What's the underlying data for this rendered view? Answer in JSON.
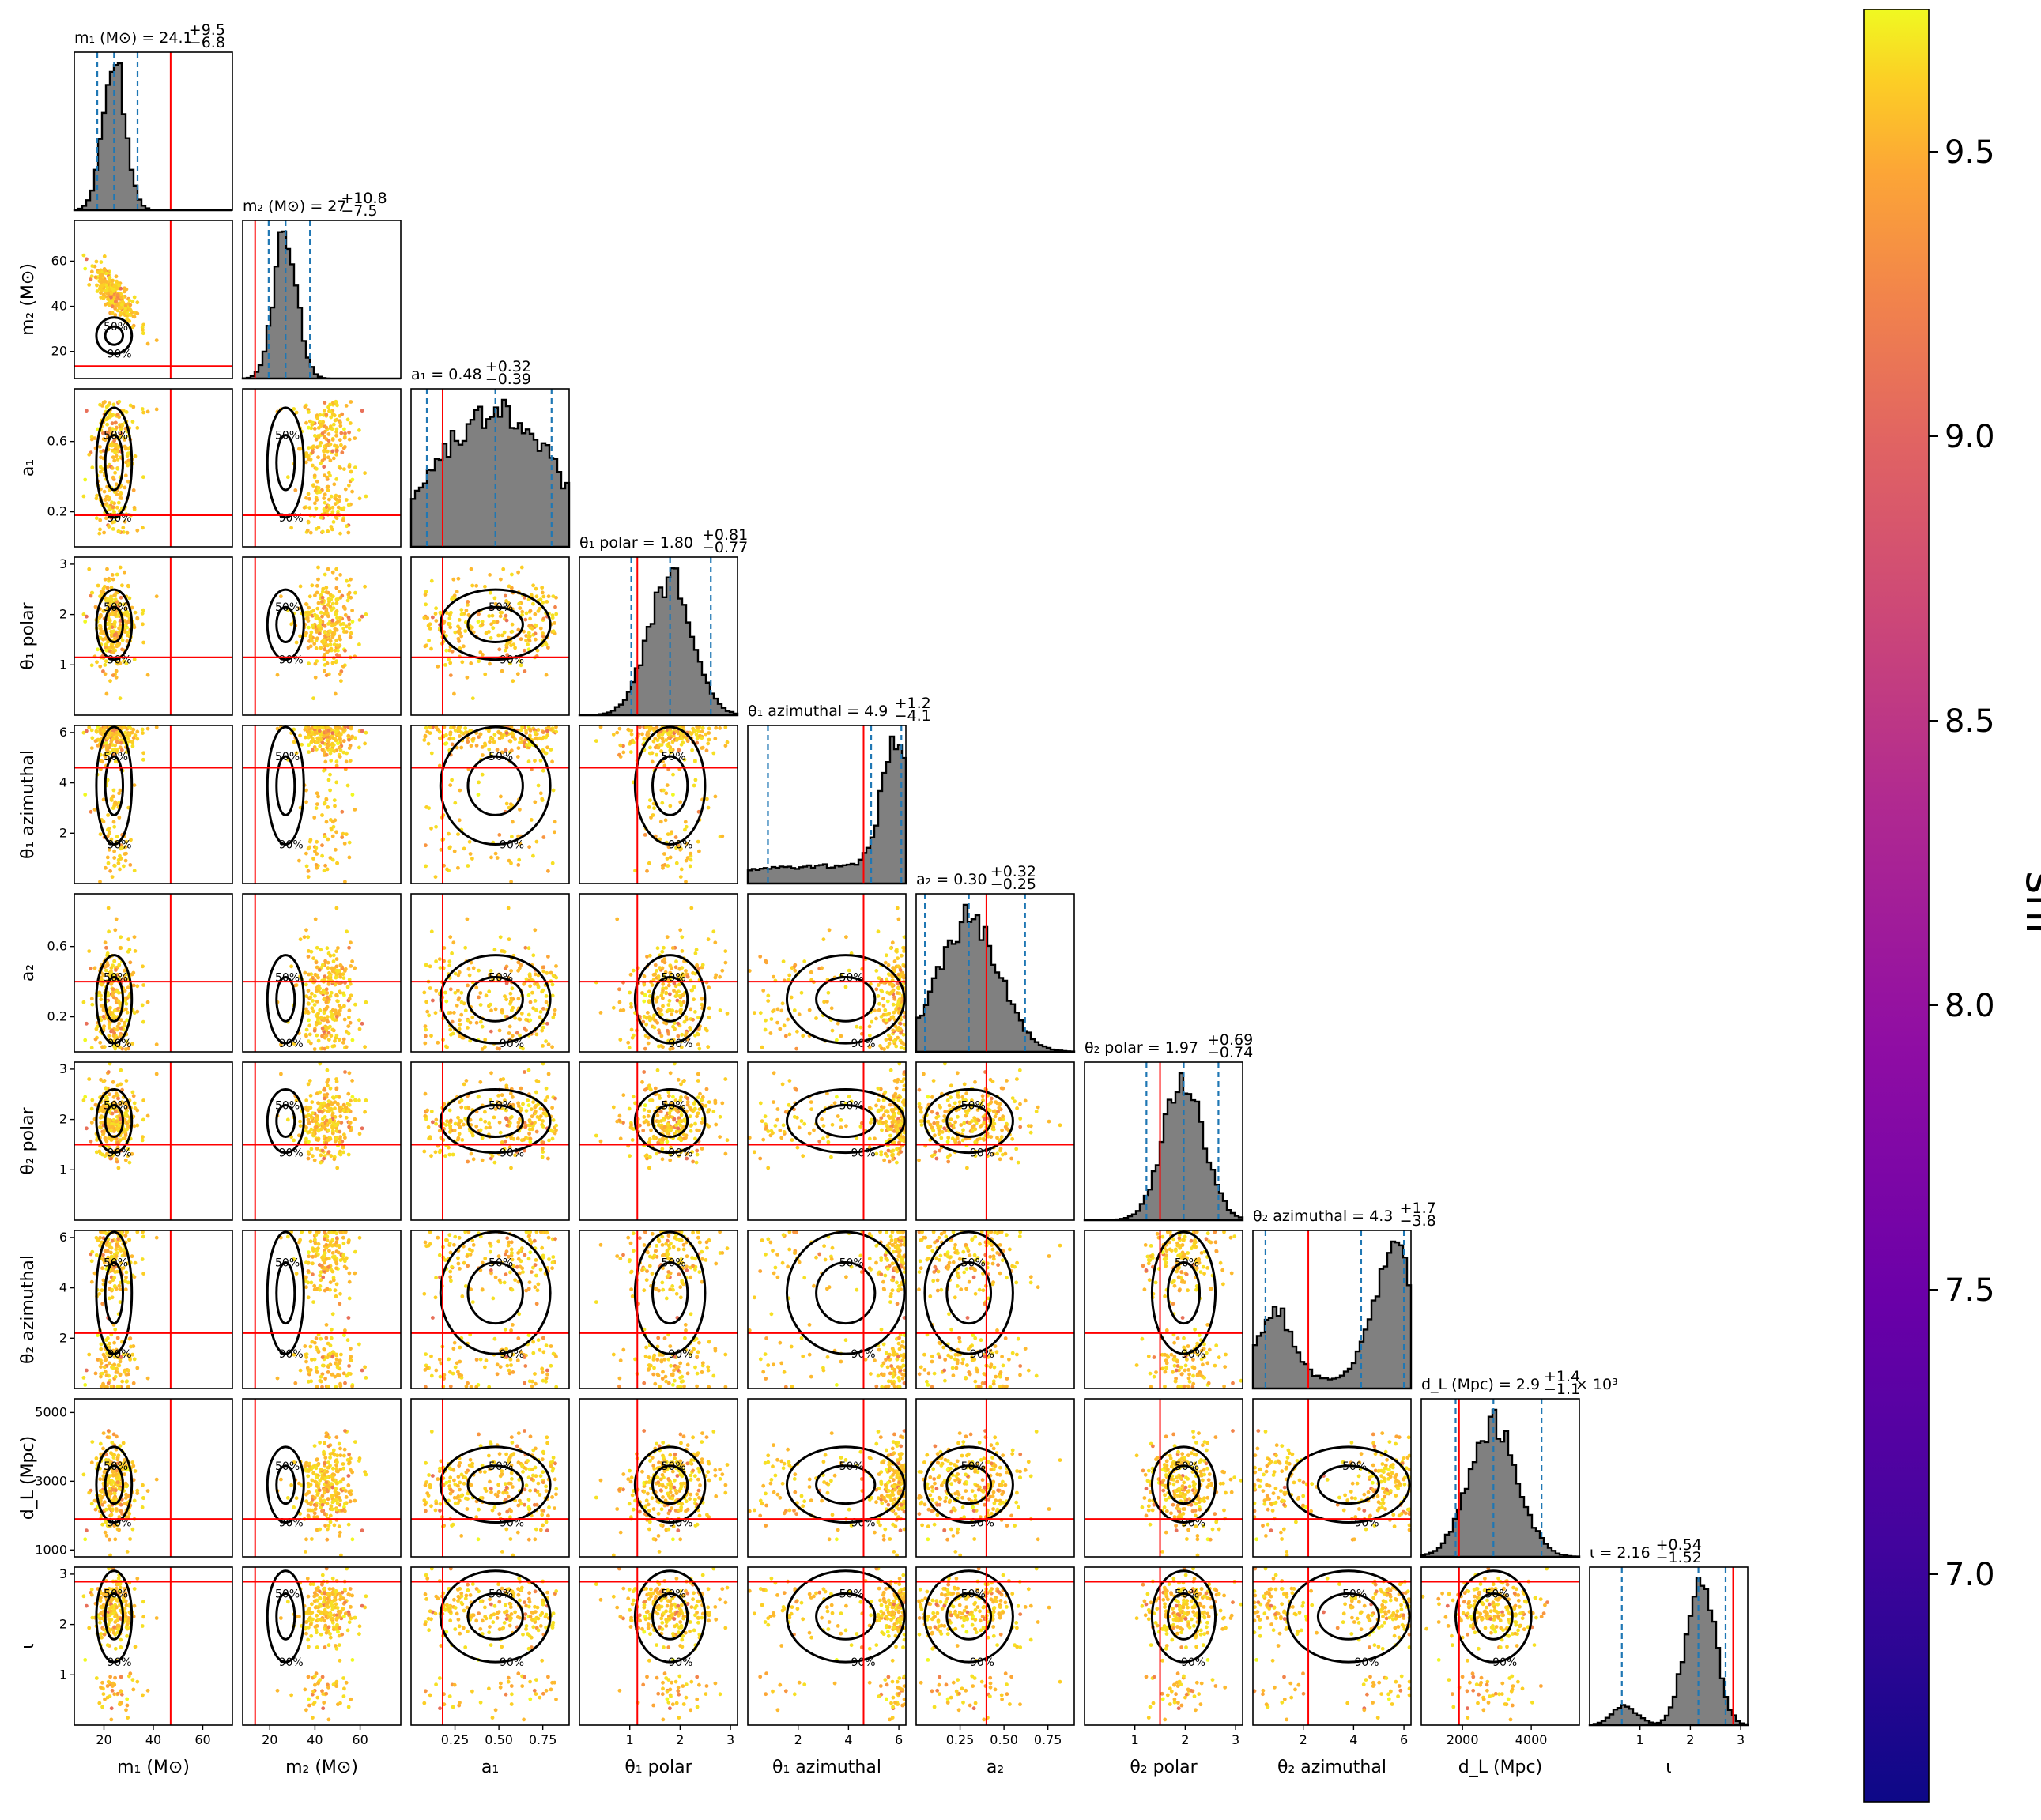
{
  "chart_data": {
    "type": "scatter",
    "description_kind": "corner",
    "colorbar": {
      "label": "snr",
      "ticks": [
        "7.0",
        "7.5",
        "8.0",
        "8.5",
        "9.0",
        "9.5"
      ],
      "range": [
        6.6,
        9.75
      ],
      "colors": [
        "#0d0887",
        "#6a00a8",
        "#b12a90",
        "#e16462",
        "#fca636",
        "#f0f921"
      ]
    },
    "truth_color": "#ff0000",
    "quantile_color": "#1f77b4",
    "contour_levels": [
      "50%",
      "90%"
    ],
    "parameters": [
      {
        "key": "m1",
        "label": "m₁ (M⊙)",
        "title": "m₁ (M⊙) = 24.1",
        "sup": "+9.5",
        "sub": "−6.8",
        "range": [
          8,
          72
        ],
        "ticks": [
          {
            "v": 20,
            "t": "20"
          },
          {
            "v": 40,
            "t": "40"
          },
          {
            "v": 60,
            "t": "60"
          }
        ],
        "median": 24.1,
        "lo": 17.3,
        "hi": 33.6,
        "truth": 47,
        "hist": "peak"
      },
      {
        "key": "m2",
        "label": "m₂ (M⊙)",
        "title": "m₂ (M⊙) = 27",
        "sup": "+10.8",
        "sub": "−7.5",
        "range": [
          8,
          78
        ],
        "ticks": [
          {
            "v": 20,
            "t": "20"
          },
          {
            "v": 40,
            "t": "40"
          },
          {
            "v": 60,
            "t": "60"
          }
        ],
        "median": 27,
        "lo": 19.5,
        "hi": 37.8,
        "truth": 13.5,
        "hist": "peak"
      },
      {
        "key": "a1",
        "label": "a₁",
        "title": "a₁ = 0.48",
        "sup": "+0.32",
        "sub": "−0.39",
        "range": [
          0,
          0.9
        ],
        "ticks": [
          {
            "v": 0.2,
            "t": "0.2"
          },
          {
            "v": 0.6,
            "t": "0.6"
          }
        ],
        "xticks": [
          {
            "v": 0.25,
            "t": "0.25"
          },
          {
            "v": 0.5,
            "t": "0.50"
          },
          {
            "v": 0.75,
            "t": "0.75"
          }
        ],
        "median": 0.48,
        "lo": 0.09,
        "hi": 0.8,
        "truth": 0.18,
        "hist": "broad"
      },
      {
        "key": "t1p",
        "label": "θ₁ polar",
        "title": "θ₁ polar = 1.80",
        "sup": "+0.81",
        "sub": "−0.77",
        "range": [
          0,
          3.14
        ],
        "ticks": [
          {
            "v": 1,
            "t": "1"
          },
          {
            "v": 2,
            "t": "2"
          },
          {
            "v": 3,
            "t": "3"
          }
        ],
        "median": 1.8,
        "lo": 1.03,
        "hi": 2.61,
        "truth": 1.15,
        "hist": "peak"
      },
      {
        "key": "t1a",
        "label": "θ₁ azimuthal",
        "title": "θ₁ azimuthal = 4.9",
        "sup": "+1.2",
        "sub": "−4.1",
        "range": [
          0,
          6.28
        ],
        "ticks": [
          {
            "v": 2,
            "t": "2"
          },
          {
            "v": 4,
            "t": "4"
          },
          {
            "v": 6,
            "t": "6"
          }
        ],
        "median": 4.9,
        "lo": 0.8,
        "hi": 6.1,
        "truth": 4.6,
        "hist": "rise"
      },
      {
        "key": "a2",
        "label": "a₂",
        "title": "a₂ = 0.30",
        "sup": "+0.32",
        "sub": "−0.25",
        "range": [
          0,
          0.9
        ],
        "ticks": [
          {
            "v": 0.2,
            "t": "0.2"
          },
          {
            "v": 0.6,
            "t": "0.6"
          }
        ],
        "xticks": [
          {
            "v": 0.25,
            "t": "0.25"
          },
          {
            "v": 0.5,
            "t": "0.50"
          },
          {
            "v": 0.75,
            "t": "0.75"
          }
        ],
        "median": 0.3,
        "lo": 0.05,
        "hi": 0.62,
        "truth": 0.4,
        "hist": "left"
      },
      {
        "key": "t2p",
        "label": "θ₂ polar",
        "title": "θ₂ polar = 1.97",
        "sup": "+0.69",
        "sub": "−0.74",
        "range": [
          0,
          3.14
        ],
        "ticks": [
          {
            "v": 1,
            "t": "1"
          },
          {
            "v": 2,
            "t": "2"
          },
          {
            "v": 3,
            "t": "3"
          }
        ],
        "median": 1.97,
        "lo": 1.23,
        "hi": 2.66,
        "truth": 1.5,
        "hist": "peak"
      },
      {
        "key": "t2a",
        "label": "θ₂ azimuthal",
        "title": "θ₂ azimuthal = 4.3",
        "sup": "+1.7",
        "sub": "−3.8",
        "range": [
          0,
          6.28
        ],
        "ticks": [
          {
            "v": 2,
            "t": "2"
          },
          {
            "v": 4,
            "t": "4"
          },
          {
            "v": 6,
            "t": "6"
          }
        ],
        "median": 4.3,
        "lo": 0.5,
        "hi": 6.0,
        "truth": 2.2,
        "hist": "bimodal"
      },
      {
        "key": "dl",
        "label": "d_L (Mpc)",
        "title": "d_L (Mpc) = 2.9",
        "sup": "+1.4",
        "sub": "−1.1",
        "suffix": "× 10³",
        "range": [
          800,
          5400
        ],
        "ticks": [
          {
            "v": 1000,
            "t": "1000"
          },
          {
            "v": 3000,
            "t": "3000"
          },
          {
            "v": 5000,
            "t": "5000"
          }
        ],
        "xticks": [
          {
            "v": 2000,
            "t": "2000"
          },
          {
            "v": 4000,
            "t": "4000"
          }
        ],
        "median": 2900,
        "lo": 1800,
        "hi": 4300,
        "truth": 1900,
        "hist": "peak"
      },
      {
        "key": "iota",
        "label": "ι",
        "title": "ι = 2.16",
        "sup": "+0.54",
        "sub": "−1.52",
        "range": [
          0,
          3.14
        ],
        "ticks": [
          {
            "v": 1,
            "t": "1"
          },
          {
            "v": 2,
            "t": "2"
          },
          {
            "v": 3,
            "t": "3"
          }
        ],
        "median": 2.16,
        "lo": 0.64,
        "hi": 2.7,
        "truth": 2.85,
        "hist": "iota"
      }
    ]
  }
}
